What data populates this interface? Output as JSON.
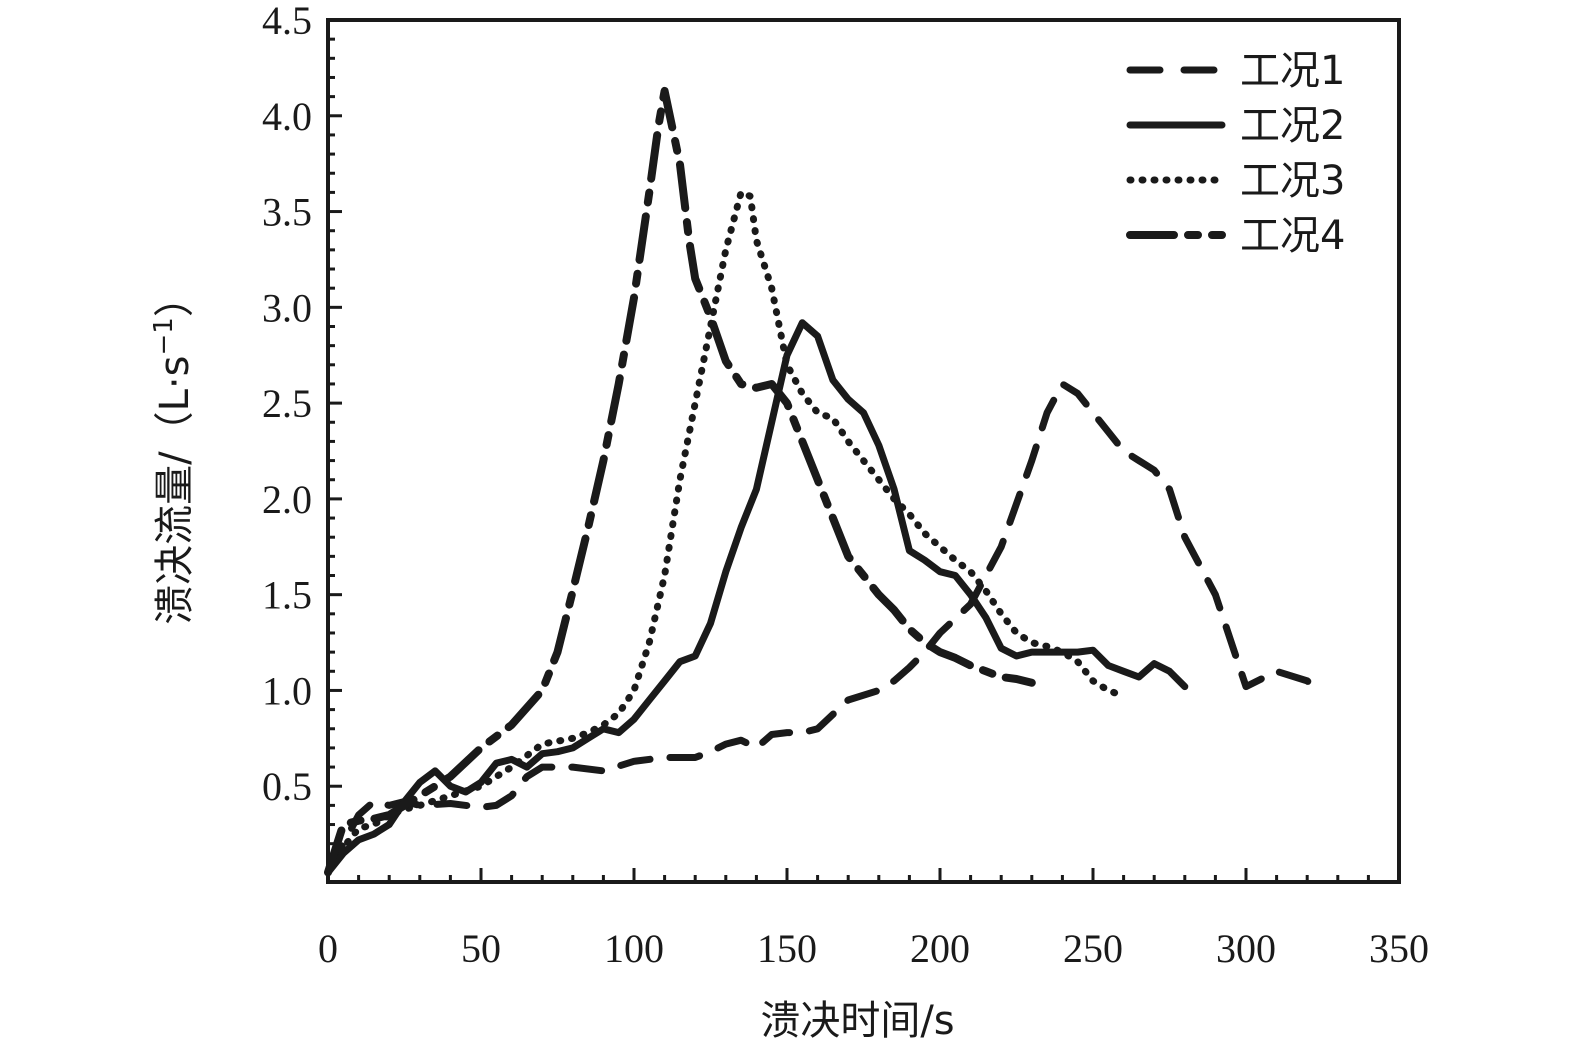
{
  "chart_data": {
    "type": "line",
    "title": "",
    "xlabel": "溃决时间/s",
    "ylabel": "溃决流量/（L·s",
    "ylabel_sup": "−1",
    "ylabel_close": "）",
    "xlim": [
      0,
      350
    ],
    "ylim": [
      0,
      4.5
    ],
    "x_ticks": [
      0,
      50,
      100,
      150,
      200,
      250,
      300,
      350
    ],
    "x_tick_labels": [
      "0",
      "50",
      "100",
      "150",
      "200",
      "250",
      "300",
      "350"
    ],
    "y_ticks": [
      0.5,
      1.0,
      1.5,
      2.0,
      2.5,
      3.0,
      3.5,
      4.0,
      4.5
    ],
    "y_tick_labels": [
      "0.5",
      "1.0",
      "1.5",
      "2.0",
      "2.5",
      "3.0",
      "3.5",
      "4.0",
      "4.5"
    ],
    "x_minor_step": 10,
    "y_minor_step": 0.1,
    "grid": false,
    "legend_position": "top-right",
    "line_color": "#1a1a1a",
    "series": [
      {
        "name": "工况1",
        "dash": "dashed",
        "points": [
          [
            0,
            0.05
          ],
          [
            5,
            0.2
          ],
          [
            10,
            0.35
          ],
          [
            15,
            0.42
          ],
          [
            20,
            0.4
          ],
          [
            25,
            0.42
          ],
          [
            30,
            0.4
          ],
          [
            40,
            0.41
          ],
          [
            50,
            0.39
          ],
          [
            55,
            0.4
          ],
          [
            60,
            0.45
          ],
          [
            65,
            0.55
          ],
          [
            70,
            0.6
          ],
          [
            80,
            0.6
          ],
          [
            90,
            0.58
          ],
          [
            100,
            0.63
          ],
          [
            110,
            0.65
          ],
          [
            120,
            0.65
          ],
          [
            125,
            0.68
          ],
          [
            130,
            0.72
          ],
          [
            135,
            0.74
          ],
          [
            140,
            0.7
          ],
          [
            145,
            0.77
          ],
          [
            150,
            0.78
          ],
          [
            155,
            0.78
          ],
          [
            160,
            0.8
          ],
          [
            170,
            0.95
          ],
          [
            180,
            1.0
          ],
          [
            185,
            1.05
          ],
          [
            190,
            1.12
          ],
          [
            195,
            1.2
          ],
          [
            200,
            1.3
          ],
          [
            210,
            1.45
          ],
          [
            220,
            1.75
          ],
          [
            230,
            2.2
          ],
          [
            235,
            2.45
          ],
          [
            240,
            2.6
          ],
          [
            245,
            2.55
          ],
          [
            250,
            2.45
          ],
          [
            255,
            2.35
          ],
          [
            260,
            2.25
          ],
          [
            265,
            2.2
          ],
          [
            270,
            2.15
          ],
          [
            275,
            2.05
          ],
          [
            280,
            1.8
          ],
          [
            290,
            1.5
          ],
          [
            300,
            1.02
          ],
          [
            310,
            1.1
          ],
          [
            320,
            1.05
          ],
          [
            325,
            0.98
          ]
        ]
      },
      {
        "name": "工况2",
        "dash": "solid",
        "points": [
          [
            0,
            0.05
          ],
          [
            5,
            0.15
          ],
          [
            10,
            0.22
          ],
          [
            15,
            0.25
          ],
          [
            20,
            0.3
          ],
          [
            25,
            0.42
          ],
          [
            30,
            0.52
          ],
          [
            35,
            0.58
          ],
          [
            40,
            0.5
          ],
          [
            45,
            0.47
          ],
          [
            50,
            0.52
          ],
          [
            55,
            0.62
          ],
          [
            60,
            0.64
          ],
          [
            65,
            0.6
          ],
          [
            70,
            0.67
          ],
          [
            75,
            0.68
          ],
          [
            80,
            0.7
          ],
          [
            85,
            0.75
          ],
          [
            90,
            0.8
          ],
          [
            95,
            0.78
          ],
          [
            100,
            0.85
          ],
          [
            105,
            0.95
          ],
          [
            110,
            1.05
          ],
          [
            115,
            1.15
          ],
          [
            120,
            1.18
          ],
          [
            125,
            1.35
          ],
          [
            130,
            1.62
          ],
          [
            135,
            1.85
          ],
          [
            140,
            2.05
          ],
          [
            145,
            2.4
          ],
          [
            150,
            2.75
          ],
          [
            155,
            2.92
          ],
          [
            160,
            2.85
          ],
          [
            165,
            2.62
          ],
          [
            170,
            2.52
          ],
          [
            175,
            2.45
          ],
          [
            180,
            2.28
          ],
          [
            185,
            2.05
          ],
          [
            190,
            1.73
          ],
          [
            195,
            1.68
          ],
          [
            200,
            1.62
          ],
          [
            205,
            1.6
          ],
          [
            210,
            1.5
          ],
          [
            215,
            1.38
          ],
          [
            220,
            1.22
          ],
          [
            225,
            1.18
          ],
          [
            230,
            1.2
          ],
          [
            240,
            1.2
          ],
          [
            245,
            1.2
          ],
          [
            250,
            1.21
          ],
          [
            255,
            1.13
          ],
          [
            260,
            1.1
          ],
          [
            265,
            1.07
          ],
          [
            270,
            1.14
          ],
          [
            275,
            1.1
          ],
          [
            280,
            1.02
          ]
        ]
      },
      {
        "name": "工况3",
        "dash": "dotted",
        "points": [
          [
            0,
            0.05
          ],
          [
            5,
            0.18
          ],
          [
            10,
            0.28
          ],
          [
            15,
            0.3
          ],
          [
            20,
            0.35
          ],
          [
            25,
            0.38
          ],
          [
            30,
            0.4
          ],
          [
            40,
            0.45
          ],
          [
            50,
            0.5
          ],
          [
            55,
            0.55
          ],
          [
            60,
            0.6
          ],
          [
            70,
            0.72
          ],
          [
            80,
            0.75
          ],
          [
            85,
            0.78
          ],
          [
            90,
            0.82
          ],
          [
            95,
            0.88
          ],
          [
            100,
            1.0
          ],
          [
            105,
            1.25
          ],
          [
            110,
            1.6
          ],
          [
            115,
            2.1
          ],
          [
            120,
            2.5
          ],
          [
            125,
            2.9
          ],
          [
            130,
            3.3
          ],
          [
            135,
            3.6
          ],
          [
            138,
            3.58
          ],
          [
            140,
            3.35
          ],
          [
            145,
            3.1
          ],
          [
            150,
            2.7
          ],
          [
            155,
            2.55
          ],
          [
            160,
            2.45
          ],
          [
            165,
            2.42
          ],
          [
            170,
            2.3
          ],
          [
            175,
            2.2
          ],
          [
            180,
            2.1
          ],
          [
            185,
            2.0
          ],
          [
            190,
            1.92
          ],
          [
            195,
            1.82
          ],
          [
            200,
            1.75
          ],
          [
            205,
            1.68
          ],
          [
            210,
            1.62
          ],
          [
            215,
            1.52
          ],
          [
            220,
            1.4
          ],
          [
            225,
            1.3
          ],
          [
            230,
            1.25
          ],
          [
            235,
            1.23
          ],
          [
            240,
            1.2
          ],
          [
            245,
            1.15
          ],
          [
            250,
            1.05
          ],
          [
            255,
            1.0
          ],
          [
            260,
            0.97
          ]
        ]
      },
      {
        "name": "工况4",
        "dash": "dashdot",
        "points": [
          [
            0,
            0.05
          ],
          [
            5,
            0.3
          ],
          [
            10,
            0.32
          ],
          [
            15,
            0.33
          ],
          [
            20,
            0.35
          ],
          [
            30,
            0.45
          ],
          [
            40,
            0.55
          ],
          [
            50,
            0.7
          ],
          [
            60,
            0.82
          ],
          [
            70,
            1.0
          ],
          [
            75,
            1.2
          ],
          [
            80,
            1.52
          ],
          [
            85,
            1.85
          ],
          [
            90,
            2.2
          ],
          [
            95,
            2.6
          ],
          [
            100,
            3.05
          ],
          [
            105,
            3.6
          ],
          [
            108,
            3.95
          ],
          [
            110,
            4.13
          ],
          [
            115,
            3.75
          ],
          [
            118,
            3.35
          ],
          [
            120,
            3.15
          ],
          [
            125,
            2.95
          ],
          [
            130,
            2.72
          ],
          [
            135,
            2.6
          ],
          [
            140,
            2.58
          ],
          [
            145,
            2.6
          ],
          [
            150,
            2.5
          ],
          [
            155,
            2.3
          ],
          [
            160,
            2.1
          ],
          [
            165,
            1.9
          ],
          [
            170,
            1.7
          ],
          [
            175,
            1.6
          ],
          [
            180,
            1.5
          ],
          [
            185,
            1.42
          ],
          [
            190,
            1.32
          ],
          [
            195,
            1.25
          ],
          [
            200,
            1.2
          ],
          [
            205,
            1.17
          ],
          [
            210,
            1.13
          ],
          [
            215,
            1.1
          ],
          [
            220,
            1.07
          ],
          [
            225,
            1.06
          ],
          [
            230,
            1.04
          ]
        ]
      }
    ]
  }
}
